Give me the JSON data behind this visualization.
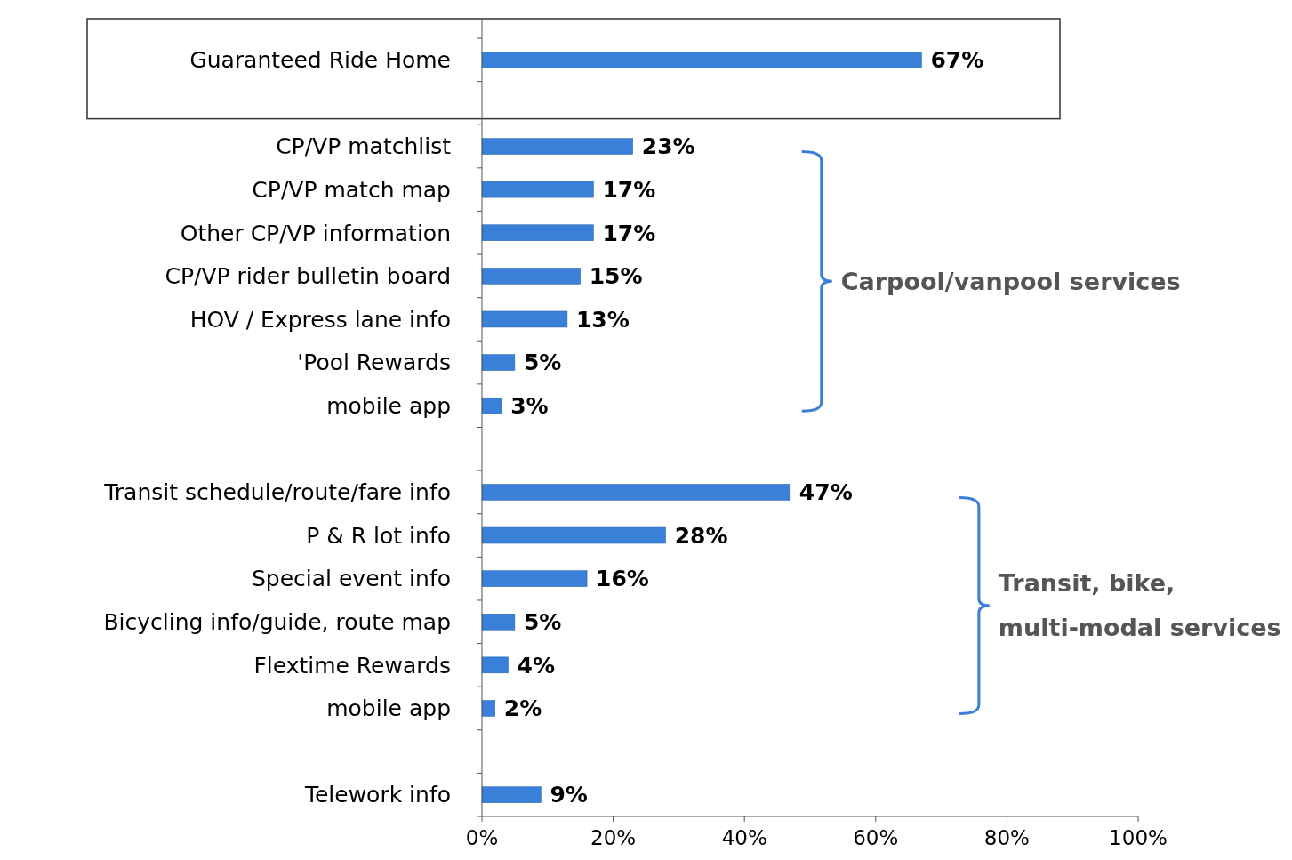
{
  "chart_data": {
    "type": "bar",
    "orientation": "horizontal",
    "categories": [
      "Guaranteed Ride Home",
      null,
      "CP/VP matchlist",
      "CP/VP match map",
      "Other CP/VP information",
      "CP/VP rider bulletin board",
      "HOV / Express lane info",
      "'Pool Rewards",
      "mobile app",
      null,
      "Transit schedule/route/fare info",
      "P & R lot info",
      "Special event info",
      "Bicycling info/guide, route map",
      "Flextime Rewards",
      "mobile app",
      null,
      "Telework info"
    ],
    "values": [
      67,
      null,
      23,
      17,
      17,
      15,
      13,
      5,
      3,
      null,
      47,
      28,
      16,
      5,
      4,
      2,
      null,
      9
    ],
    "value_labels": [
      "67%",
      null,
      "23%",
      "17%",
      "17%",
      "15%",
      "13%",
      "5%",
      "3%",
      null,
      "47%",
      "28%",
      "16%",
      "5%",
      "4%",
      "2%",
      null,
      "9%"
    ],
    "color": "#3a7fd8",
    "xlim": [
      0,
      100
    ],
    "xticks": [
      {
        "value": 0,
        "label": "0%"
      },
      {
        "value": 20,
        "label": "20%"
      },
      {
        "value": 40,
        "label": "40%"
      },
      {
        "value": 60,
        "label": "60%"
      },
      {
        "value": 80,
        "label": "80%"
      },
      {
        "value": 100,
        "label": "100%"
      }
    ],
    "annotations": [
      "Carpool/vanpool services",
      "Transit, bike, multi-modal services"
    ],
    "grid": false
  }
}
